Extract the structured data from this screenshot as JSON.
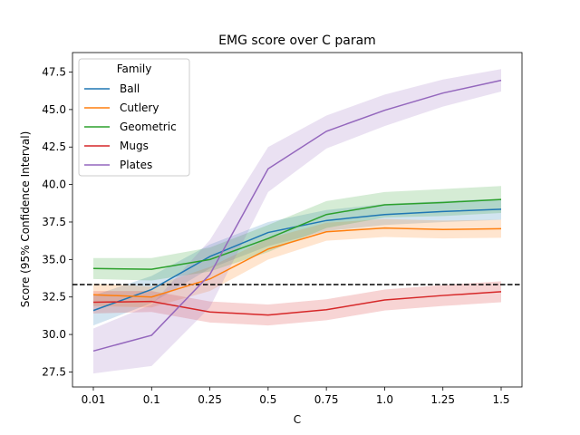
{
  "chart_data": {
    "type": "line",
    "title": "EMG score over C param",
    "xlabel": "C",
    "ylabel": "Score (95% Confidence Interval)",
    "x_categories": [
      "0.01",
      "0.1",
      "0.25",
      "0.5",
      "0.75",
      "1.0",
      "1.25",
      "1.5"
    ],
    "ylim": [
      26.5,
      48.8
    ],
    "yticks": [
      27.5,
      30.0,
      32.5,
      35.0,
      37.5,
      40.0,
      42.5,
      45.0,
      47.5
    ],
    "ytick_labels": [
      "27.5",
      "30.0",
      "32.5",
      "35.0",
      "37.5",
      "40.0",
      "42.5",
      "45.0",
      "47.5"
    ],
    "baseline": 33.33,
    "grid": false,
    "legend": {
      "title": "Family",
      "position": "top-left"
    },
    "series": [
      {
        "name": "Ball",
        "color": "#1f77b4",
        "values": [
          31.6,
          33.0,
          35.2,
          36.8,
          37.6,
          38.0,
          38.2,
          38.35
        ],
        "lower": [
          30.6,
          32.1,
          34.4,
          35.9,
          36.9,
          37.3,
          37.5,
          37.65
        ],
        "upper": [
          32.6,
          33.9,
          36.0,
          37.5,
          38.3,
          38.7,
          38.9,
          39.05
        ]
      },
      {
        "name": "Cutlery",
        "color": "#ff7f0e",
        "values": [
          32.65,
          32.5,
          33.7,
          35.7,
          36.85,
          37.1,
          37.0,
          37.05
        ],
        "lower": [
          31.9,
          31.8,
          32.9,
          35.0,
          36.25,
          36.5,
          36.4,
          36.45
        ],
        "upper": [
          33.4,
          33.2,
          34.5,
          36.4,
          37.45,
          37.7,
          37.6,
          37.65
        ]
      },
      {
        "name": "Geometric",
        "color": "#2ca02c",
        "values": [
          34.4,
          34.35,
          35.0,
          36.4,
          38.0,
          38.65,
          38.8,
          39.0
        ],
        "lower": [
          33.7,
          33.6,
          34.2,
          35.5,
          37.1,
          37.8,
          37.9,
          38.1
        ],
        "upper": [
          35.1,
          35.1,
          35.8,
          37.3,
          38.9,
          39.5,
          39.7,
          39.9
        ]
      },
      {
        "name": "Mugs",
        "color": "#d62728",
        "values": [
          32.15,
          32.2,
          31.5,
          31.3,
          31.65,
          32.3,
          32.6,
          32.85
        ],
        "lower": [
          31.4,
          31.5,
          30.8,
          30.6,
          30.95,
          31.6,
          31.9,
          32.15
        ],
        "upper": [
          32.9,
          32.9,
          32.2,
          32.0,
          32.35,
          33.0,
          33.3,
          33.55
        ]
      },
      {
        "name": "Plates",
        "color": "#9467bd",
        "values": [
          28.9,
          29.95,
          34.0,
          41.05,
          43.55,
          44.95,
          46.1,
          46.95
        ],
        "lower": [
          27.4,
          27.9,
          31.8,
          39.5,
          42.4,
          43.9,
          45.2,
          46.2
        ],
        "upper": [
          30.4,
          32.0,
          36.3,
          42.5,
          44.6,
          46.0,
          47.0,
          47.7
        ]
      }
    ]
  }
}
